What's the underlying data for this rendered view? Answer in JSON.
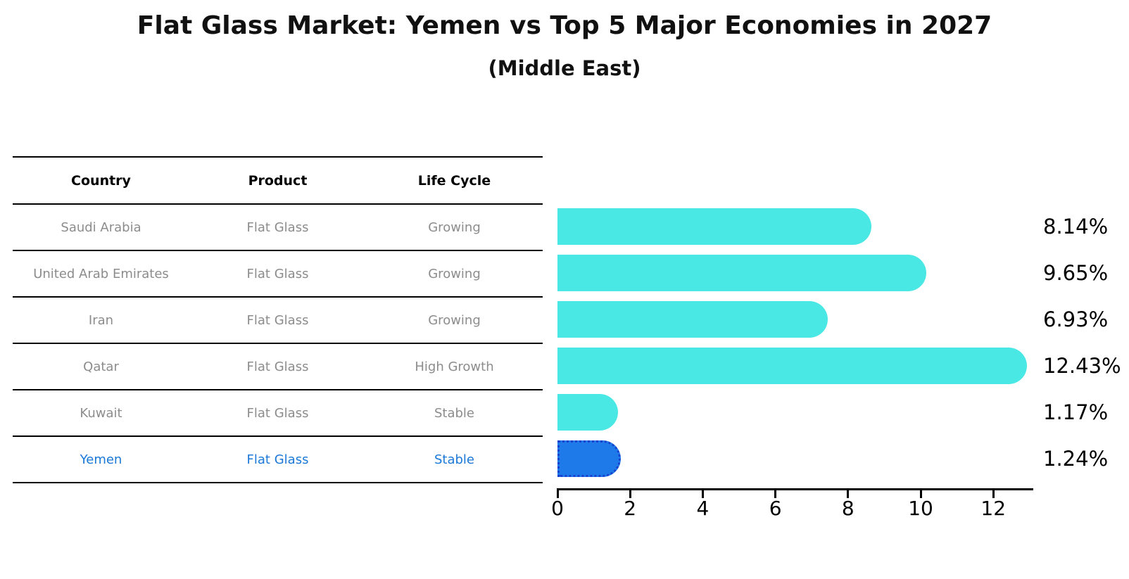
{
  "title": "Flat Glass Market: Yemen vs Top 5 Major Economies in 2027",
  "subtitle": "(Middle East)",
  "table": {
    "headers": [
      "Country",
      "Product",
      "Life Cycle"
    ],
    "rows": [
      {
        "country": "Saudi Arabia",
        "product": "Flat Glass",
        "life_cycle": "Growing",
        "highlight": false
      },
      {
        "country": "United Arab Emirates",
        "product": "Flat Glass",
        "life_cycle": "Growing",
        "highlight": false
      },
      {
        "country": "Iran",
        "product": "Flat Glass",
        "life_cycle": "Growing",
        "highlight": false
      },
      {
        "country": "Qatar",
        "product": "Flat Glass",
        "life_cycle": "High Growth",
        "highlight": false
      },
      {
        "country": "Kuwait",
        "product": "Flat Glass",
        "life_cycle": "Stable",
        "highlight": false
      },
      {
        "country": "Yemen",
        "product": "Flat Glass",
        "life_cycle": "Stable",
        "highlight": true
      }
    ]
  },
  "chart_data": {
    "type": "bar",
    "orientation": "horizontal",
    "title": "Flat Glass Market: Yemen vs Top 5 Major Economies in 2027 (Middle East)",
    "categories": [
      "Saudi Arabia",
      "United Arab Emirates",
      "Iran",
      "Qatar",
      "Kuwait",
      "Yemen"
    ],
    "values": [
      8.14,
      9.65,
      6.93,
      12.43,
      1.17,
      1.24
    ],
    "labels": [
      "8.14%",
      "9.65%",
      "6.93%",
      "12.43%",
      "1.17%",
      "1.24%"
    ],
    "xlim": [
      0,
      13.1
    ],
    "xticks": [
      0,
      2,
      4,
      6,
      8,
      10,
      12
    ],
    "grid": false,
    "legend": false,
    "highlight_index": 5,
    "bar_color": "#4AE8E4",
    "highlight_color": "#1E7AE8",
    "highlight_border_color": "#1A41CF",
    "text_color": "#000000"
  },
  "colors": {
    "muted_text": "#8c8c8c",
    "highlight_text": "#1b78d8",
    "line": "#000000",
    "background": "#ffffff"
  }
}
